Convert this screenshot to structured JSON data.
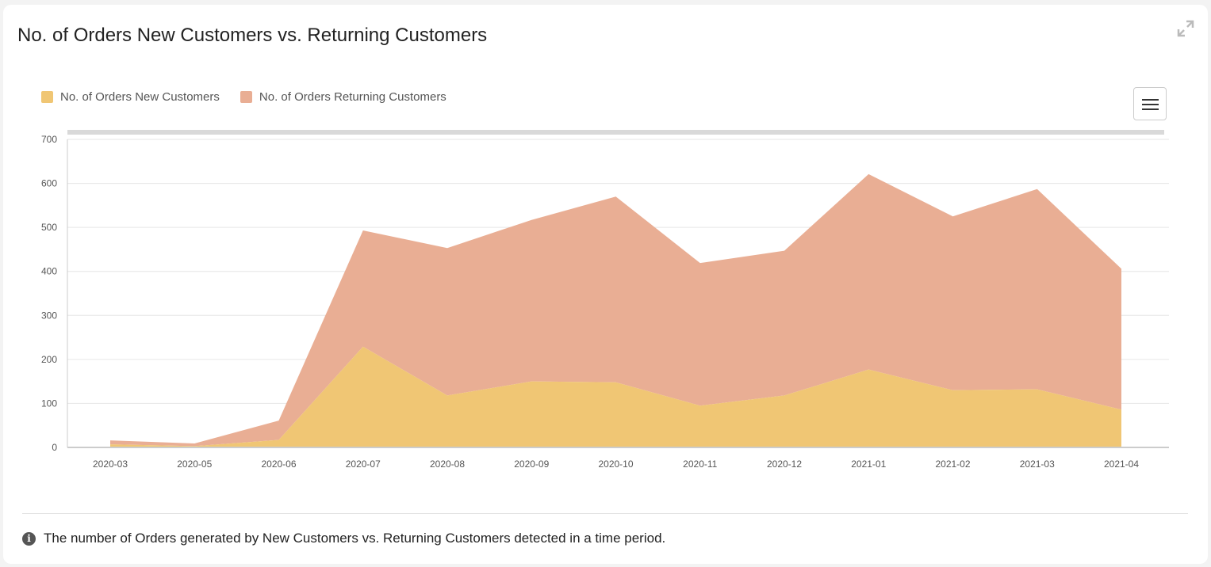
{
  "header": {
    "title": "No. of Orders New Customers vs. Returning Customers"
  },
  "toolbar": {
    "expand_icon": "expand-icon",
    "menu_icon": "hamburger-menu-icon"
  },
  "colors": {
    "new_customers": "#f0c674",
    "returning_customers": "#e9ae94",
    "grid": "#e6e6e6",
    "navigator": "#d9d9d9"
  },
  "chart_data": {
    "type": "area",
    "stacked": true,
    "title": "No. of Orders New Customers vs. Returning Customers",
    "xlabel": "",
    "ylabel": "",
    "ylim": [
      0,
      700
    ],
    "yticks": [
      0,
      100,
      200,
      300,
      400,
      500,
      600,
      700
    ],
    "grid": true,
    "legend_position": "top-left",
    "categories": [
      "2020-03",
      "2020-05",
      "2020-06",
      "2020-07",
      "2020-08",
      "2020-09",
      "2020-10",
      "2020-11",
      "2020-12",
      "2021-01",
      "2021-02",
      "2021-03",
      "2021-04"
    ],
    "series": [
      {
        "name": "No. of Orders New Customers",
        "values": [
          7,
          3,
          17,
          229,
          118,
          150,
          148,
          95,
          118,
          177,
          130,
          132,
          86
        ]
      },
      {
        "name": "No. of Orders Returning Customers",
        "values": [
          9,
          6,
          44,
          264,
          335,
          367,
          422,
          324,
          329,
          444,
          395,
          455,
          320
        ]
      }
    ]
  },
  "footer": {
    "info_icon": "info-icon",
    "info_glyph": "i",
    "note": "The number of Orders generated by New Customers vs. Returning Customers detected in a time period."
  }
}
